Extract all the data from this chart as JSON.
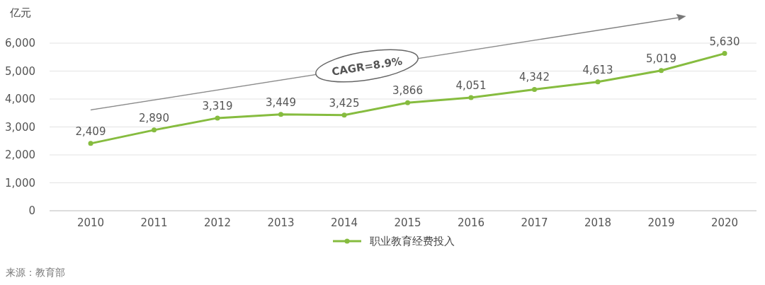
{
  "chart_data": {
    "type": "line",
    "ylabel": "亿元",
    "categories": [
      "2010",
      "2011",
      "2012",
      "2013",
      "2014",
      "2015",
      "2016",
      "2017",
      "2018",
      "2019",
      "2020"
    ],
    "series": [
      {
        "name": "职业教育经费投入",
        "color": "#86bc3f",
        "values": [
          2409,
          2890,
          3319,
          3449,
          3425,
          3866,
          4051,
          4342,
          4613,
          5019,
          5630
        ],
        "value_labels": [
          "2,409",
          "2,890",
          "3,319",
          "3,449",
          "3,425",
          "3,866",
          "4,051",
          "4,342",
          "4,613",
          "5,019",
          "5,630"
        ]
      }
    ],
    "ylim": [
      0,
      6000
    ],
    "yticks": [
      0,
      {
        "value": 1000,
        "label": "1,000"
      },
      {
        "value": 2000,
        "label": "2,000"
      },
      {
        "value": 3000,
        "label": "3,000"
      },
      {
        "value": 4000,
        "label": "4,000"
      },
      {
        "value": 5000,
        "label": "5,000"
      },
      {
        "value": 6000,
        "label": "6,000"
      }
    ],
    "grid": "y",
    "legend": "bottom",
    "marker": "circle",
    "line_style": "solid",
    "annotations": [
      "CAGR=8.9%",
      "来源：教育部"
    ]
  }
}
